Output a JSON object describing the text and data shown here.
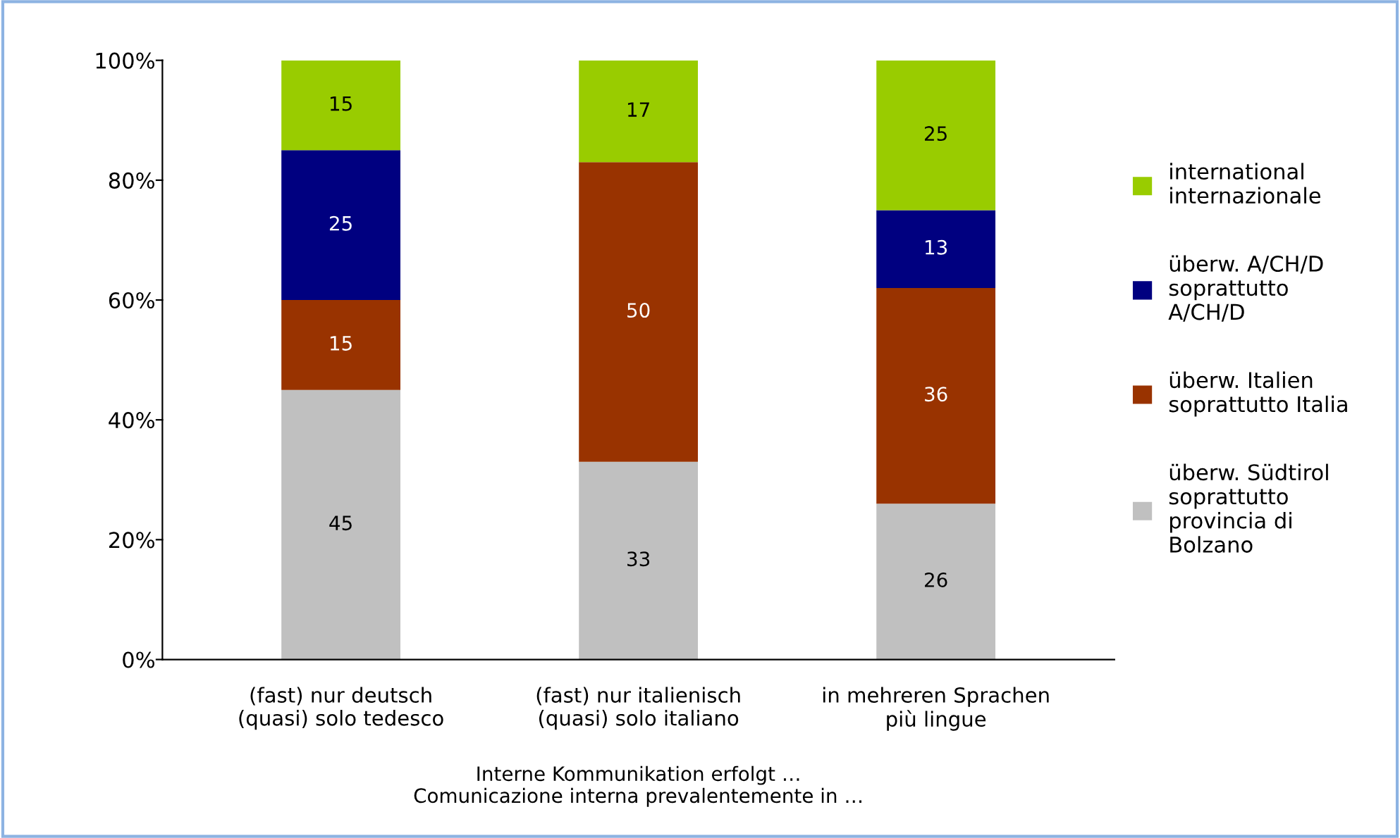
{
  "chart_data": {
    "type": "bar",
    "stacked": true,
    "xlabel": "Interne Kommunikation erfolgt …\nComunicazione interna prevalentemente in …",
    "categories": [
      "(fast) nur deutsch\n(quasi) solo tedesco",
      "(fast) nur italienisch\n(quasi) solo italiano",
      "in mehreren Sprachen\npiù lingue"
    ],
    "series": [
      {
        "name": "überw. Südtirol\nsoprattutto\nprovincia di\nBolzano",
        "color": "#c0c0c0",
        "values": [
          45,
          33,
          26
        ]
      },
      {
        "name": "überw. Italien\nsoprattutto Italia",
        "color": "#993300",
        "values": [
          15,
          50,
          36
        ]
      },
      {
        "name": "überw. A/CH/D\nsoprattutto\nA/CH/D",
        "color": "#000080",
        "values": [
          25,
          null,
          13
        ]
      },
      {
        "name": "international\ninternazionale",
        "color": "#99cc00",
        "values": [
          15,
          17,
          25
        ]
      }
    ],
    "ylim": [
      0,
      100
    ],
    "yticks": [
      {
        "value": 0,
        "label": "0%"
      },
      {
        "value": 20,
        "label": "20%"
      },
      {
        "value": 40,
        "label": "40%"
      },
      {
        "value": 60,
        "label": "60%"
      },
      {
        "value": 80,
        "label": "80%"
      },
      {
        "value": 100,
        "label": "100%"
      }
    ],
    "data_labels": true,
    "grid": false,
    "legend": "right"
  }
}
